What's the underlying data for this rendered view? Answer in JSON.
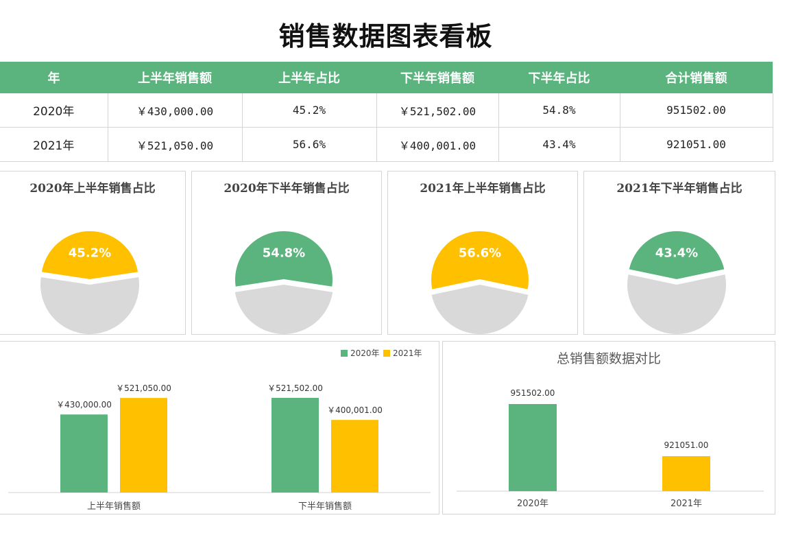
{
  "page_title": "销售数据图表看板",
  "table": {
    "headers": [
      "年",
      "上半年销售额",
      "上半年占比",
      "下半年销售额",
      "下半年占比",
      "合计销售额"
    ],
    "rows": [
      [
        "2020年",
        "￥430,000.00",
        "45.2%",
        "￥521,502.00",
        "54.8%",
        "951502.00"
      ],
      [
        "2021年",
        "￥521,050.00",
        "56.6%",
        "￥400,001.00",
        "43.4%",
        "921051.00"
      ]
    ]
  },
  "colors": {
    "green": "#5bb47e",
    "yellow": "#ffc000",
    "grey": "#d9d9d9"
  },
  "chart_data": [
    {
      "type": "pie",
      "title": "2020年上半年销售占比",
      "highlight_percent": 45.2,
      "label": "45.2%",
      "color": "#ffc000"
    },
    {
      "type": "pie",
      "title": "2020年下半年销售占比",
      "highlight_percent": 54.8,
      "label": "54.8%",
      "color": "#5bb47e"
    },
    {
      "type": "pie",
      "title": "2021年上半年销售占比",
      "highlight_percent": 56.6,
      "label": "56.6%",
      "color": "#ffc000"
    },
    {
      "type": "pie",
      "title": "2021年下半年销售占比",
      "highlight_percent": 43.4,
      "label": "43.4%",
      "color": "#5bb47e"
    },
    {
      "type": "bar",
      "title": "",
      "categories": [
        "上半年销售额",
        "下半年销售额"
      ],
      "series": [
        {
          "name": "2020年",
          "color": "#5bb47e",
          "values": [
            430000,
            521502
          ],
          "labels": [
            "￥430,000.00",
            "￥521,502.00"
          ]
        },
        {
          "name": "2021年",
          "color": "#ffc000",
          "values": [
            521050,
            400001
          ],
          "labels": [
            "￥521,050.00",
            "￥400,001.00"
          ]
        }
      ],
      "legend": "top-right",
      "ylim": [
        0,
        560000
      ]
    },
    {
      "type": "bar",
      "title": "总销售额数据对比",
      "categories": [
        "2020年",
        "2021年"
      ],
      "values": [
        951502,
        921051
      ],
      "labels": [
        "951502.00",
        "921051.00"
      ],
      "colors": [
        "#5bb47e",
        "#ffc000"
      ],
      "ylim": [
        900000,
        960000
      ]
    }
  ]
}
